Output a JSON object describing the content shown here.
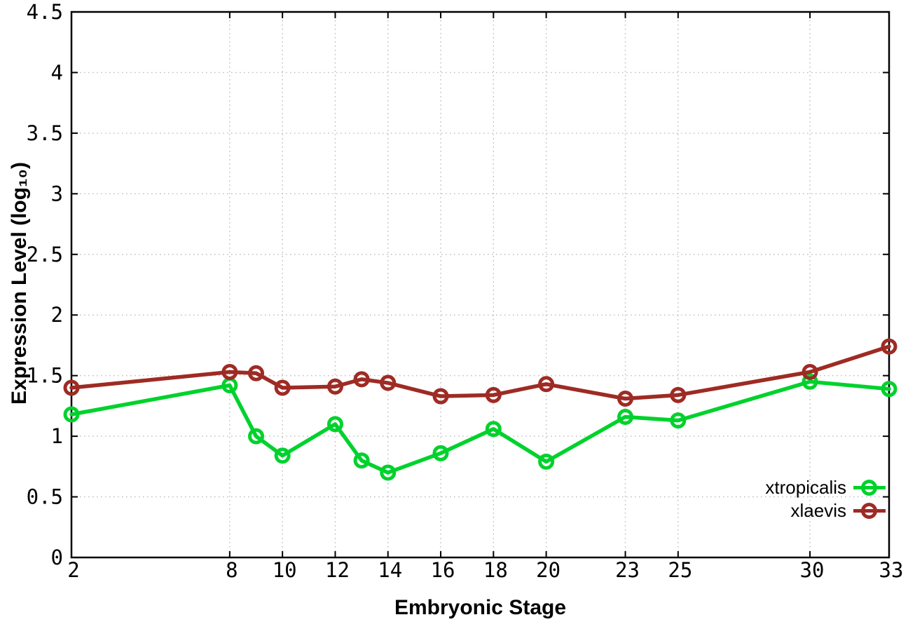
{
  "chart_data": {
    "type": "line",
    "title": "",
    "xlabel": "Embryonic Stage",
    "ylabel": "Expression Level (log₁₀)",
    "x": [
      2,
      8,
      9,
      10,
      12,
      13,
      14,
      16,
      18,
      20,
      23,
      25,
      30,
      33
    ],
    "series": [
      {
        "name": "xtropicalis",
        "color": "#00d22d",
        "values": [
          1.18,
          1.42,
          1.0,
          0.84,
          1.1,
          0.8,
          0.7,
          0.86,
          1.06,
          0.79,
          1.16,
          1.13,
          1.45,
          1.39
        ]
      },
      {
        "name": "xlaevis",
        "color": "#9e2b24",
        "values": [
          1.4,
          1.53,
          1.52,
          1.4,
          1.41,
          1.47,
          1.44,
          1.33,
          1.34,
          1.43,
          1.31,
          1.34,
          1.53,
          1.74
        ]
      }
    ],
    "xlim": [
      2,
      33
    ],
    "ylim": [
      0,
      4.5
    ],
    "xticks": {
      "values": [
        2,
        8,
        10,
        12,
        14,
        16,
        18,
        20,
        23,
        25,
        30,
        33
      ],
      "labels": [
        "2",
        "8",
        "10",
        "12",
        "14",
        "16",
        "18",
        "20",
        "23",
        "25",
        "30",
        "33"
      ]
    },
    "yticks": {
      "values": [
        0,
        0.5,
        1,
        1.5,
        2,
        2.5,
        3,
        3.5,
        4,
        4.5
      ],
      "labels": [
        "0",
        "0.5",
        "1",
        "1.5",
        "2",
        "2.5",
        "3",
        "3.5",
        "4",
        "4.5"
      ]
    },
    "grid": true,
    "grid_style": "dotted",
    "grid_color": "#bdbdbd",
    "axis_color": "#000000",
    "background_color": "#ffffff",
    "marker": "open-circle",
    "legend_position": "bottom-right-inside",
    "legend": [
      {
        "label": "xtropicalis"
      },
      {
        "label": "xlaevis"
      }
    ]
  }
}
